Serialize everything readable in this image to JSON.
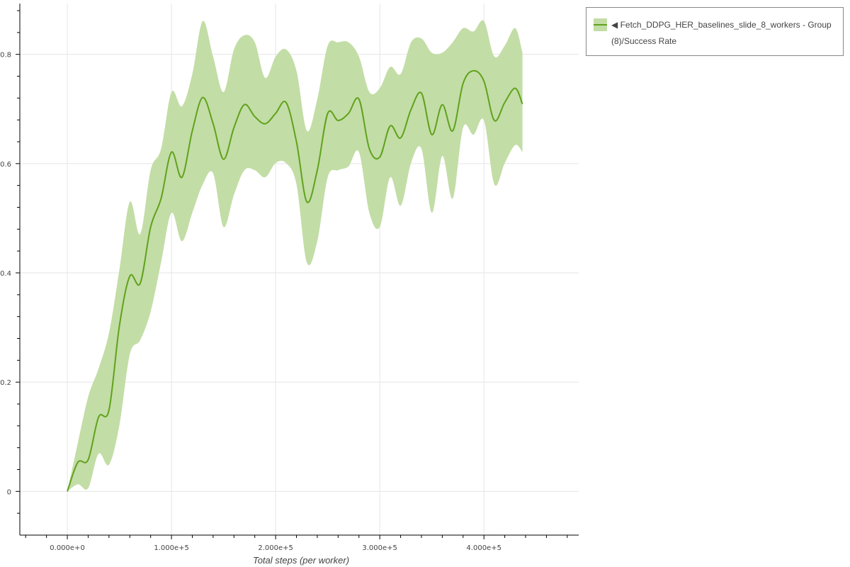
{
  "chart_data": {
    "type": "line",
    "title": "",
    "xlabel": "Total steps (per worker)",
    "ylabel": "",
    "xlim": [
      -45600,
      491000
    ],
    "ylim": [
      -0.08,
      0.893
    ],
    "grid": true,
    "legend_placement": "outside-top-right",
    "x_ticks": [
      0,
      100000,
      200000,
      300000,
      400000
    ],
    "x_tick_labels": [
      "0.000e+0",
      "1.000e+5",
      "2.000e+5",
      "3.000e+5",
      "4.000e+5"
    ],
    "y_ticks": [
      0,
      0.2,
      0.4,
      0.6,
      0.8
    ],
    "y_tick_labels": [
      "0",
      "0.2",
      "0.4",
      "0.6",
      "0.8"
    ],
    "legend": {
      "line1": "◀ Fetch_DDPG_HER_baselines_slide_8_workers - Group",
      "line2": "(8)/Success Rate"
    },
    "colors": {
      "line": "#5fa21b",
      "band": "#c3dda6"
    },
    "series": [
      {
        "name": "◀ Fetch_DDPG_HER_baselines_slide_8_workers - Group (8)/Success Rate",
        "x": [
          0,
          10000,
          20000,
          30000,
          40000,
          50000,
          60000,
          70000,
          80000,
          90000,
          100000,
          110000,
          120000,
          130000,
          140000,
          150000,
          160000,
          170000,
          180000,
          190000,
          200000,
          210000,
          220000,
          230000,
          240000,
          250000,
          260000,
          270000,
          280000,
          290000,
          300000,
          310000,
          320000,
          330000,
          340000,
          350000,
          360000,
          370000,
          380000,
          390000,
          400000,
          410000,
          420000,
          430000,
          437000
        ],
        "mean": [
          0,
          0.053,
          0.058,
          0.136,
          0.149,
          0.303,
          0.394,
          0.381,
          0.484,
          0.536,
          0.621,
          0.575,
          0.66,
          0.721,
          0.673,
          0.608,
          0.666,
          0.708,
          0.686,
          0.673,
          0.692,
          0.712,
          0.64,
          0.53,
          0.588,
          0.692,
          0.679,
          0.692,
          0.718,
          0.627,
          0.612,
          0.669,
          0.647,
          0.699,
          0.729,
          0.653,
          0.708,
          0.66,
          0.747,
          0.77,
          0.751,
          0.679,
          0.712,
          0.738,
          0.709
        ],
        "upper": [
          0,
          0.088,
          0.173,
          0.225,
          0.29,
          0.406,
          0.53,
          0.471,
          0.588,
          0.627,
          0.731,
          0.705,
          0.764,
          0.861,
          0.796,
          0.731,
          0.809,
          0.835,
          0.822,
          0.757,
          0.796,
          0.809,
          0.77,
          0.66,
          0.718,
          0.816,
          0.822,
          0.822,
          0.796,
          0.731,
          0.738,
          0.777,
          0.764,
          0.822,
          0.829,
          0.803,
          0.803,
          0.822,
          0.848,
          0.842,
          0.861,
          0.796,
          0.816,
          0.848,
          0.803
        ],
        "lower": [
          0,
          0.013,
          0.006,
          0.069,
          0.049,
          0.121,
          0.251,
          0.277,
          0.329,
          0.419,
          0.51,
          0.458,
          0.51,
          0.562,
          0.582,
          0.484,
          0.543,
          0.588,
          0.588,
          0.575,
          0.601,
          0.601,
          0.562,
          0.419,
          0.458,
          0.575,
          0.588,
          0.595,
          0.621,
          0.51,
          0.484,
          0.575,
          0.523,
          0.601,
          0.627,
          0.51,
          0.614,
          0.536,
          0.666,
          0.653,
          0.679,
          0.562,
          0.601,
          0.634,
          0.621
        ]
      }
    ]
  }
}
